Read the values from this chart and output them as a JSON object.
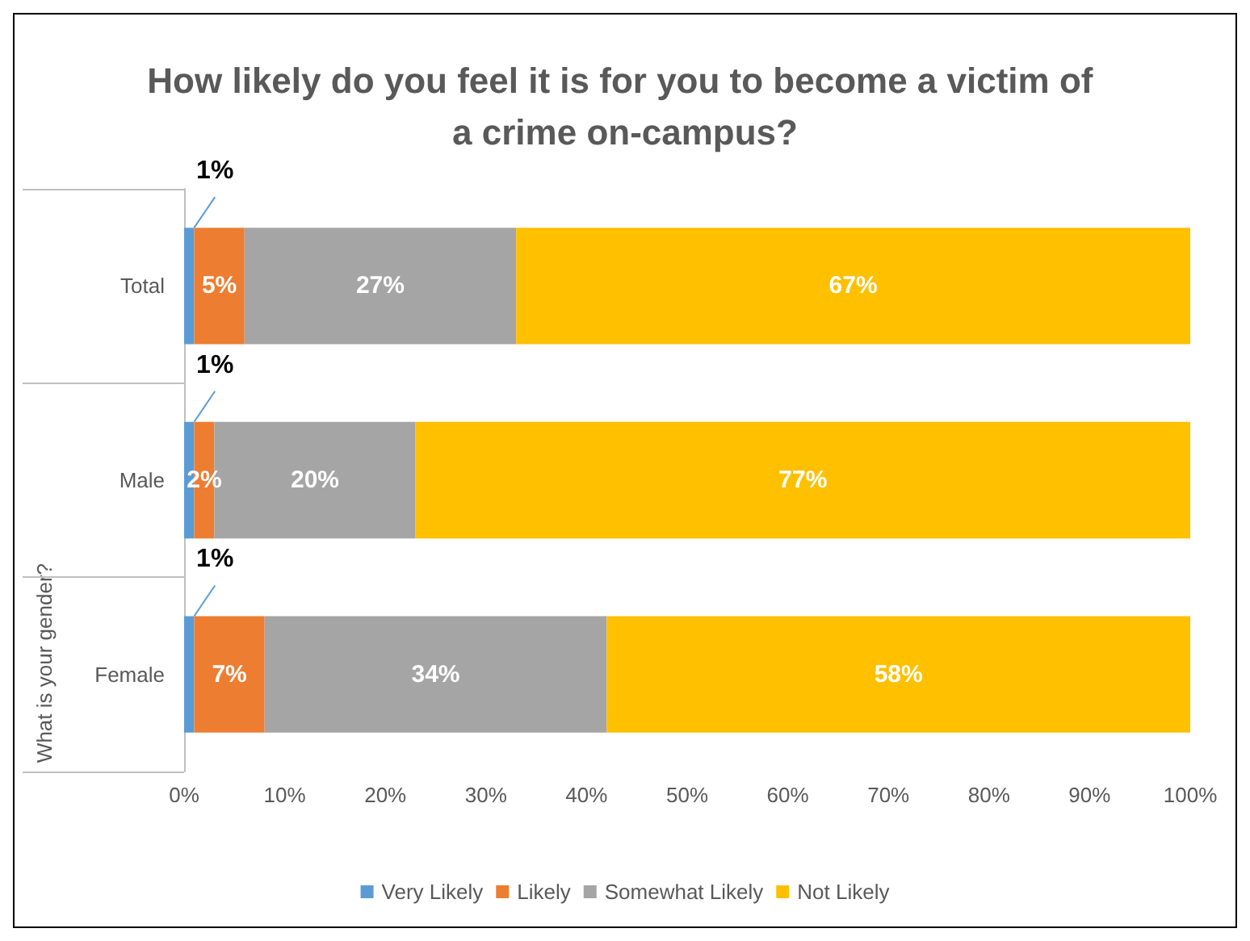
{
  "chart_data": {
    "type": "bar",
    "title": "How likely do you feel it is for you to become a victim of a crime on-campus?",
    "orientation": "horizontal",
    "stacked": true,
    "categories": [
      "Total",
      "Male",
      "Female"
    ],
    "annotations": [
      "What is your gender?"
    ],
    "series": [
      {
        "name": "Very Likely",
        "color": "#5b9bd5",
        "values": [
          1,
          1,
          1
        ],
        "value_labels": [
          "1%",
          "1%",
          "1%"
        ]
      },
      {
        "name": "Likely",
        "color": "#ed7d31",
        "values": [
          5,
          2,
          7
        ],
        "value_labels": [
          "5%",
          "2%",
          "7%"
        ]
      },
      {
        "name": "Somewhat Likely",
        "color": "#a5a5a5",
        "values": [
          27,
          20,
          34
        ],
        "value_labels": [
          "27%",
          "20%",
          "34%"
        ]
      },
      {
        "name": "Not Likely",
        "color": "#ffc000",
        "values": [
          67,
          77,
          58
        ],
        "value_labels": [
          "67%",
          "77%",
          "58%"
        ]
      }
    ],
    "xlim": [
      0,
      100
    ],
    "xticks": [
      {
        "value": 0,
        "label": "0%"
      },
      {
        "value": 10,
        "label": "10%"
      },
      {
        "value": 20,
        "label": "20%"
      },
      {
        "value": 30,
        "label": "30%"
      },
      {
        "value": 40,
        "label": "40%"
      },
      {
        "value": 50,
        "label": "50%"
      },
      {
        "value": 60,
        "label": "60%"
      },
      {
        "value": 70,
        "label": "70%"
      },
      {
        "value": 80,
        "label": "80%"
      },
      {
        "value": 90,
        "label": "90%"
      },
      {
        "value": 100,
        "label": "100%"
      }
    ],
    "legend": "bottom"
  }
}
